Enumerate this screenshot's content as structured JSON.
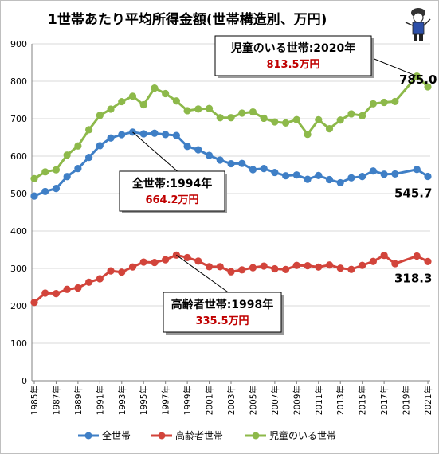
{
  "chart_data": {
    "type": "line",
    "title": "1世帯あたり平均所得金額(世帯構造別、万円)",
    "ylim": [
      0,
      900
    ],
    "yticks": [
      0,
      100,
      200,
      300,
      400,
      500,
      600,
      700,
      800,
      900
    ],
    "x": [
      1985,
      1986,
      1987,
      1988,
      1989,
      1990,
      1991,
      1992,
      1993,
      1994,
      1995,
      1996,
      1997,
      1998,
      1999,
      2000,
      2001,
      2002,
      2003,
      2004,
      2005,
      2006,
      2007,
      2008,
      2009,
      2010,
      2011,
      2012,
      2013,
      2014,
      2015,
      2016,
      2017,
      2018,
      2020,
      2021
    ],
    "xtick_labels": [
      "1985年",
      "1987年",
      "1989年",
      "1991年",
      "1993年",
      "1995年",
      "1997年",
      "1999年",
      "2001年",
      "2003年",
      "2005年",
      "2007年",
      "2009年",
      "2011年",
      "2013年",
      "2015年",
      "2017年",
      "2019年",
      "2021年"
    ],
    "grid": true,
    "legend_position": "bottom",
    "series": [
      {
        "name": "全世帯",
        "color": "#3f7fc6",
        "values": [
          493.3,
          505.5,
          513.6,
          545.2,
          566.7,
          596.6,
          627.8,
          648.4,
          657.5,
          664.2,
          659.6,
          661.2,
          657.7,
          655.2,
          626.0,
          616.9,
          602.0,
          589.3,
          579.7,
          580.4,
          563.8,
          566.8,
          556.2,
          547.5,
          549.6,
          538.0,
          548.2,
          537.2,
          528.9,
          541.9,
          545.4,
          560.2,
          551.6,
          552.3,
          564.3,
          545.7
        ],
        "end_label": "545.7"
      },
      {
        "name": "高齢者世帯",
        "color": "#d2443b",
        "values": [
          209.0,
          234.0,
          232.7,
          244.1,
          247.9,
          263.2,
          272.3,
          293.3,
          290.0,
          303.9,
          316.9,
          315.8,
          323.1,
          335.5,
          328.9,
          319.5,
          304.6,
          304.6,
          290.9,
          296.1,
          301.9,
          306.3,
          298.9,
          297.0,
          307.9,
          307.2,
          303.6,
          309.1,
          300.5,
          297.3,
          308.1,
          318.6,
          334.9,
          312.6,
          332.9,
          318.3
        ],
        "end_label": "318.3"
      },
      {
        "name": "児童のいる世帯",
        "color": "#8db94a",
        "values": [
          539.8,
          557.8,
          563.4,
          602.8,
          627.2,
          670.4,
          708.8,
          725.5,
          745.6,
          760.0,
          737.2,
          781.6,
          767.1,
          747.4,
          721.4,
          725.8,
          727.2,
          702.7,
          702.6,
          714.9,
          718.0,
          701.2,
          691.4,
          688.5,
          697.3,
          658.1,
          697.0,
          673.2,
          696.3,
          712.9,
          707.8,
          739.8,
          743.6,
          745.9,
          813.5,
          785.0
        ],
        "end_label": "785.0"
      }
    ],
    "annotations": [
      {
        "series": "全世帯",
        "title": "全世帯:1994年",
        "value_label": "664.2万円",
        "x": 1994,
        "y": 664.2
      },
      {
        "series": "高齢者世帯",
        "title": "高齢者世帯:1998年",
        "value_label": "335.5万円",
        "x": 1998,
        "y": 335.5
      },
      {
        "series": "児童のいる世帯",
        "title": "児童のいる世帯:2020年",
        "value_label": "813.5万円",
        "x": 2020,
        "y": 813.5
      }
    ]
  },
  "colors": {
    "grid": "#d9d9d9",
    "axis": "#808080",
    "value_text": "#c00000"
  },
  "logo": {
    "icon": "mascot-figure-icon"
  }
}
